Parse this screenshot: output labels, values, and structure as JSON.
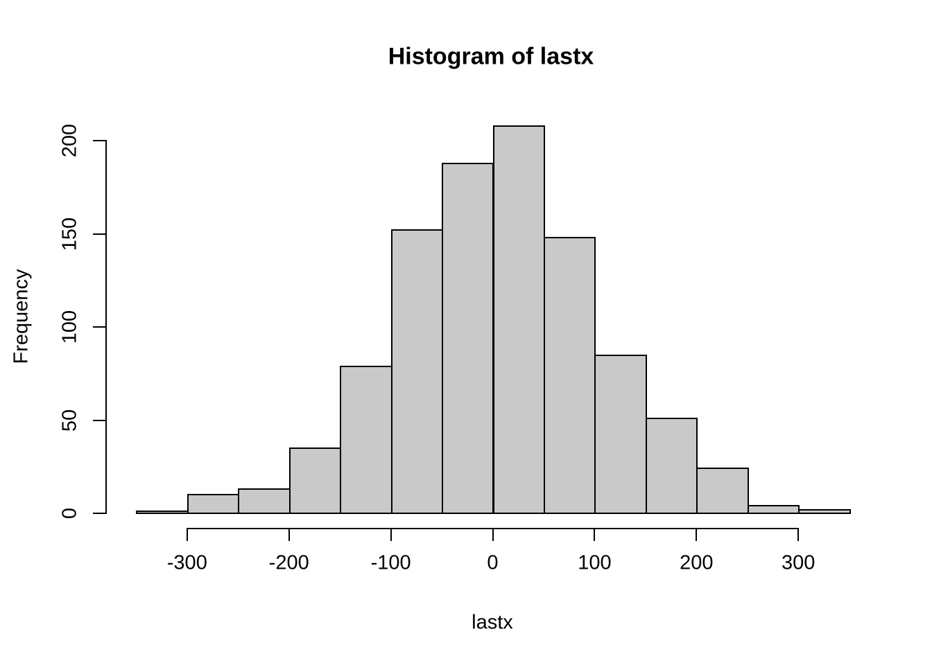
{
  "figure": {
    "title": "Histogram of lastx",
    "xlabel": "lastx",
    "ylabel": "Frequency"
  },
  "chart_data": {
    "type": "bar",
    "subtype": "histogram",
    "title": "Histogram of lastx",
    "xlabel": "lastx",
    "ylabel": "Frequency",
    "bin_width": 50,
    "bin_edges": [
      -350,
      -300,
      -250,
      -200,
      -150,
      -100,
      -50,
      0,
      50,
      100,
      150,
      200,
      250,
      300,
      350
    ],
    "counts": [
      1,
      10,
      13,
      35,
      79,
      152,
      188,
      208,
      148,
      85,
      51,
      24,
      4,
      2
    ],
    "total_n": 1000,
    "x_ticks": [
      -300,
      -200,
      -100,
      0,
      100,
      200,
      300
    ],
    "y_ticks": [
      0,
      50,
      100,
      150,
      200
    ],
    "xlim": [
      -350,
      350
    ],
    "ylim": [
      0,
      208
    ],
    "grid": false,
    "legend": null,
    "colors": {
      "bar_fill": "#C9C9C9",
      "bar_border": "#000000",
      "axis": "#000000",
      "text": "#000000",
      "background": "#FFFFFF"
    }
  }
}
